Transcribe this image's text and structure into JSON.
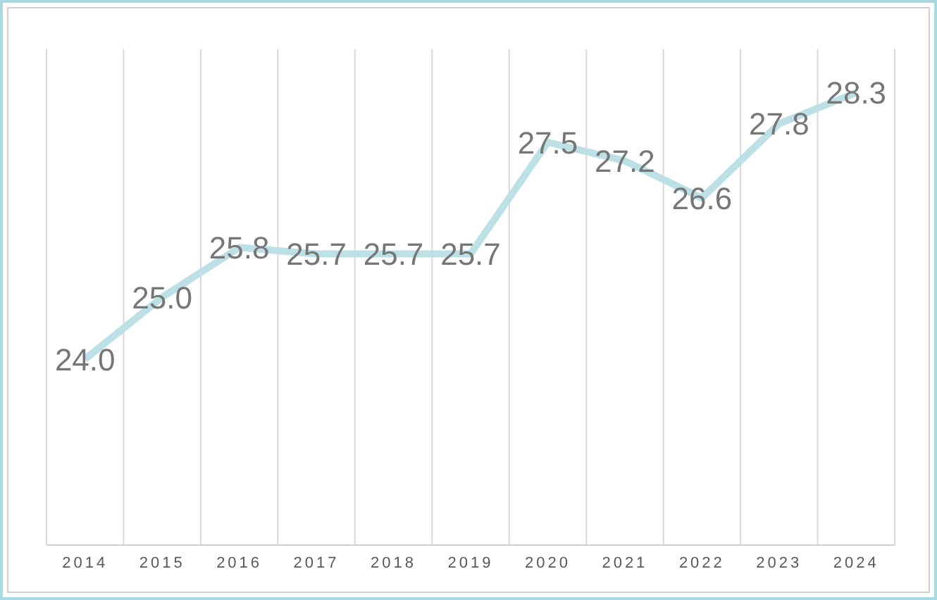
{
  "chart_data": {
    "type": "line",
    "categories": [
      "2014",
      "2015",
      "2016",
      "2017",
      "2018",
      "2019",
      "2020",
      "2021",
      "2022",
      "2023",
      "2024"
    ],
    "values": [
      24.0,
      25.0,
      25.8,
      25.7,
      25.7,
      25.7,
      27.5,
      27.2,
      26.6,
      27.8,
      28.3
    ],
    "value_labels": [
      "24.0",
      "25.0",
      "25.8",
      "25.7",
      "25.7",
      "25.7",
      "27.5",
      "27.2",
      "26.6",
      "27.8",
      "28.3"
    ],
    "color": "#bde0e6",
    "ylim": [
      21,
      29
    ],
    "tick_labels": "x",
    "grid": "x",
    "marker": "none",
    "line_style": "solid"
  }
}
